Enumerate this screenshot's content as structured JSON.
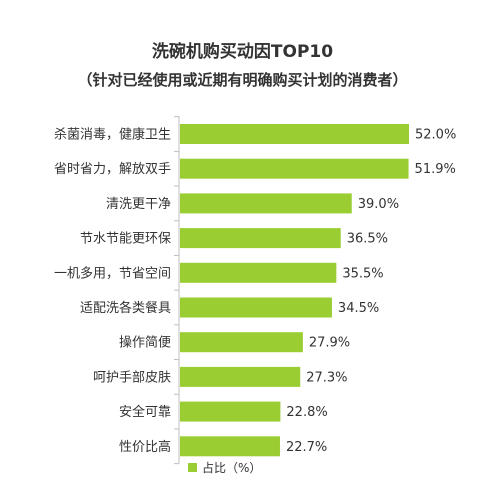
{
  "title": "洗碗机购买动因TOP10",
  "subtitle": "（针对已经使用或近期有明确购买计划的消费者）",
  "colors": {
    "bar": "#9acd32",
    "axis": "#bfbfbf",
    "text": "#333333"
  },
  "chart_data": {
    "type": "bar",
    "orientation": "horizontal",
    "categories": [
      "杀菌消毒，健康卫生",
      "省时省力，解放双手",
      "清洗更干净",
      "节水节能更环保",
      "一机多用，节省空间",
      "适配洗各类餐具",
      "操作简便",
      "呵护手部皮肤",
      "安全可靠",
      "性价比高"
    ],
    "series": [
      {
        "name": "占比（%）",
        "values": [
          52.0,
          51.9,
          39.0,
          36.5,
          35.5,
          34.5,
          27.9,
          27.3,
          22.8,
          22.7
        ]
      }
    ],
    "value_labels": [
      "52.0%",
      "51.9%",
      "39.0%",
      "36.5%",
      "35.5%",
      "34.5%",
      "27.9%",
      "27.3%",
      "22.8%",
      "22.7%"
    ],
    "grid": false,
    "legend_position": "bottom"
  }
}
